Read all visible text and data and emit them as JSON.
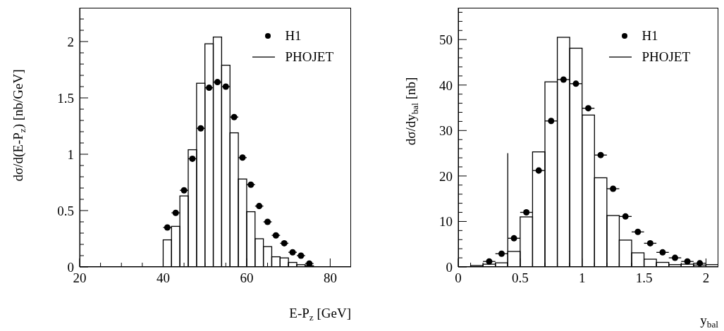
{
  "chart_data": [
    {
      "type": "histogram",
      "xlabel": "E-P$_{z}$ [GeV]",
      "ylabel": "dσ/d(E-P$_{z}$) [nb/GeV]",
      "xlim": [
        20,
        85
      ],
      "ylim": [
        0,
        2.3
      ],
      "xticks": [
        20,
        {
          "value": 25,
          "label": null
        },
        {
          "value": 30,
          "label": null
        },
        {
          "value": 35,
          "label": null
        },
        40,
        {
          "value": 45,
          "label": null
        },
        {
          "value": 50,
          "label": null
        },
        {
          "value": 55,
          "label": null
        },
        60,
        {
          "value": 65,
          "label": null
        },
        {
          "value": 70,
          "label": null
        },
        {
          "value": 75,
          "label": null
        },
        80
      ],
      "yticks": [
        0,
        {
          "value": 0.1,
          "label": null
        },
        {
          "value": 0.2,
          "label": null
        },
        {
          "value": 0.3,
          "label": null
        },
        {
          "value": 0.4,
          "label": null
        },
        0.5,
        {
          "value": 0.6,
          "label": null
        },
        {
          "value": 0.7,
          "label": null
        },
        {
          "value": 0.8,
          "label": null
        },
        {
          "value": 0.9,
          "label": null
        },
        1,
        {
          "value": 1.1,
          "label": null
        },
        {
          "value": 1.2,
          "label": null
        },
        {
          "value": 1.3,
          "label": null
        },
        {
          "value": 1.4,
          "label": null
        },
        1.5,
        {
          "value": 1.6,
          "label": null
        },
        {
          "value": 1.7,
          "label": null
        },
        {
          "value": 1.8,
          "label": null
        },
        {
          "value": 1.9,
          "label": null
        },
        2,
        {
          "value": 2.1,
          "label": null
        },
        {
          "value": 2.2,
          "label": null
        }
      ],
      "legend": "top right",
      "grid": false,
      "series": [
        {
          "name": "H1",
          "type": "scatter",
          "color": "#000000",
          "marker": "circle",
          "x": [
            41,
            43,
            45,
            47,
            49,
            51,
            53,
            55,
            57,
            59,
            61,
            63,
            65,
            67,
            69,
            71,
            73,
            75
          ],
          "values": [
            0.35,
            0.48,
            0.68,
            0.96,
            1.23,
            1.59,
            1.64,
            1.6,
            1.33,
            0.97,
            0.73,
            0.54,
            0.4,
            0.28,
            0.21,
            0.13,
            0.1,
            0.03
          ],
          "xerrors": [
            1,
            1,
            1,
            1,
            1,
            1,
            1,
            1,
            1,
            1,
            1,
            1,
            1,
            1,
            1,
            1,
            1,
            1
          ]
        },
        {
          "name": "PHOJET",
          "color": "#000000",
          "bins": [
            40,
            42,
            44,
            46,
            48,
            50,
            52,
            54,
            56,
            58,
            60,
            62,
            64,
            66,
            68,
            70,
            72,
            74,
            76
          ],
          "values": [
            0.24,
            0.36,
            0.63,
            1.04,
            1.63,
            1.98,
            2.04,
            1.79,
            1.19,
            0.78,
            0.49,
            0.25,
            0.18,
            0.09,
            0.08,
            0.04,
            0.02,
            0.01
          ]
        }
      ]
    },
    {
      "type": "histogram",
      "xlabel": "y$_{bal}$",
      "ylabel": "dσ/dy$_{bal}$ [nb]",
      "xlim": [
        0,
        2.1
      ],
      "ylim": [
        0,
        57
      ],
      "xticks": [
        0,
        {
          "value": 0.1,
          "label": null
        },
        {
          "value": 0.2,
          "label": null
        },
        {
          "value": 0.3,
          "label": null
        },
        {
          "value": 0.4,
          "label": null
        },
        0.5,
        {
          "value": 0.6,
          "label": null
        },
        {
          "value": 0.7,
          "label": null
        },
        {
          "value": 0.8,
          "label": null
        },
        {
          "value": 0.9,
          "label": null
        },
        1,
        {
          "value": 1.1,
          "label": null
        },
        {
          "value": 1.2,
          "label": null
        },
        {
          "value": 1.3,
          "label": null
        },
        {
          "value": 1.4,
          "label": null
        },
        1.5,
        {
          "value": 1.6,
          "label": null
        },
        {
          "value": 1.7,
          "label": null
        },
        {
          "value": 1.8,
          "label": null
        },
        {
          "value": 1.9,
          "label": null
        },
        2
      ],
      "yticks": [
        0,
        {
          "value": 2,
          "label": null
        },
        {
          "value": 4,
          "label": null
        },
        {
          "value": 6,
          "label": null
        },
        {
          "value": 8,
          "label": null
        },
        10,
        {
          "value": 12,
          "label": null
        },
        {
          "value": 14,
          "label": null
        },
        {
          "value": 16,
          "label": null
        },
        {
          "value": 18,
          "label": null
        },
        20,
        {
          "value": 22,
          "label": null
        },
        {
          "value": 24,
          "label": null
        },
        {
          "value": 26,
          "label": null
        },
        {
          "value": 28,
          "label": null
        },
        30,
        {
          "value": 32,
          "label": null
        },
        {
          "value": 34,
          "label": null
        },
        {
          "value": 36,
          "label": null
        },
        {
          "value": 38,
          "label": null
        },
        40,
        {
          "value": 42,
          "label": null
        },
        {
          "value": 44,
          "label": null
        },
        {
          "value": 46,
          "label": null
        },
        {
          "value": 48,
          "label": null
        },
        50,
        {
          "value": 52,
          "label": null
        },
        {
          "value": 54,
          "label": null
        },
        {
          "value": 56,
          "label": null
        }
      ],
      "legend": "top right",
      "grid": false,
      "series": [
        {
          "name": "H1",
          "type": "scatter",
          "color": "#000000",
          "marker": "circle",
          "x": [
            0.25,
            0.35,
            0.45,
            0.55,
            0.65,
            0.75,
            0.85,
            0.95,
            1.05,
            1.15,
            1.25,
            1.35,
            1.45,
            1.55,
            1.65,
            1.75,
            1.85,
            1.95
          ],
          "values": [
            1.2,
            2.9,
            6.3,
            12.0,
            21.2,
            32.1,
            41.2,
            40.3,
            34.9,
            24.6,
            17.2,
            11.1,
            7.7,
            5.2,
            3.2,
            2.0,
            1.2,
            0.8
          ],
          "xerrors": [
            0.05,
            0.05,
            0.05,
            0.05,
            0.05,
            0.05,
            0.05,
            0.05,
            0.05,
            0.05,
            0.05,
            0.05,
            0.05,
            0.05,
            0.05,
            0.05,
            0.05,
            0.05
          ]
        },
        {
          "name": "PHOJET",
          "color": "#000000",
          "bins": [
            0.1,
            0.2,
            0.3,
            0.4,
            0.5,
            0.6,
            0.7,
            0.8,
            0.9,
            1.0,
            1.1,
            1.2,
            1.3,
            1.4,
            1.5,
            1.6,
            1.7,
            1.8,
            1.9,
            2.0,
            2.1
          ],
          "values": [
            0.3,
            0.6,
            0.9,
            3.4,
            11.0,
            25.3,
            40.7,
            50.5,
            48.1,
            33.4,
            19.6,
            11.3,
            5.9,
            3.1,
            1.7,
            1.0,
            0.5,
            0.6,
            0.4,
            0.5
          ]
        },
        {
          "type": "line",
          "color": "#000000",
          "x": [
            0.4,
            0.4
          ],
          "values": [
            0,
            25
          ]
        }
      ]
    }
  ]
}
